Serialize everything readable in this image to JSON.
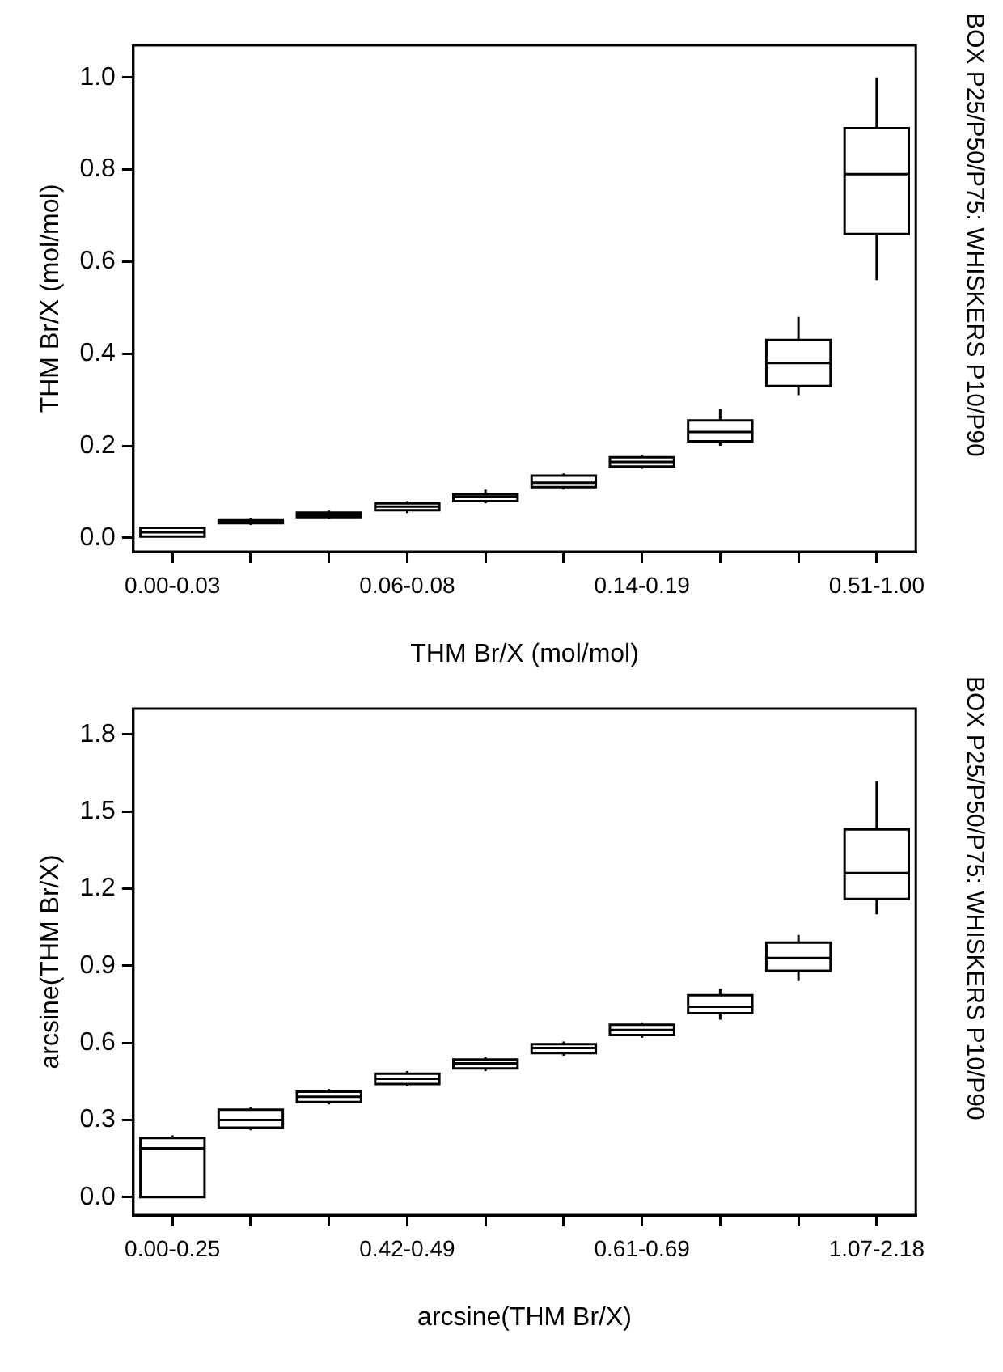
{
  "chart_data": [
    {
      "type": "box",
      "xlabel": "THM Br/X (mol/mol)",
      "ylabel": "THM Br/X (mol/mol)",
      "annotations": [
        "BOX P25/P50/P75: WHISKERS P10/P90"
      ],
      "categories": [
        "0.00-0.03",
        null,
        null,
        "0.06-0.08",
        null,
        null,
        "0.14-0.19",
        null,
        null,
        "0.51-1.00"
      ],
      "boxes": [
        {
          "low": 0.003,
          "q1": 0.003,
          "median": 0.012,
          "q3": 0.022,
          "high": 0.022
        },
        {
          "low": 0.028,
          "q1": 0.032,
          "median": 0.036,
          "q3": 0.04,
          "high": 0.044
        },
        {
          "low": 0.041,
          "q1": 0.045,
          "median": 0.05,
          "q3": 0.055,
          "high": 0.059
        },
        {
          "low": 0.054,
          "q1": 0.06,
          "median": 0.068,
          "q3": 0.075,
          "high": 0.08
        },
        {
          "low": 0.075,
          "q1": 0.08,
          "median": 0.09,
          "q3": 0.095,
          "high": 0.105
        },
        {
          "low": 0.105,
          "q1": 0.11,
          "median": 0.12,
          "q3": 0.135,
          "high": 0.14
        },
        {
          "low": 0.15,
          "q1": 0.155,
          "median": 0.165,
          "q3": 0.175,
          "high": 0.18
        },
        {
          "low": 0.2,
          "q1": 0.21,
          "median": 0.23,
          "q3": 0.255,
          "high": 0.28
        },
        {
          "low": 0.31,
          "q1": 0.33,
          "median": 0.38,
          "q3": 0.43,
          "high": 0.48
        },
        {
          "low": 0.56,
          "q1": 0.66,
          "median": 0.79,
          "q3": 0.89,
          "high": 1.0
        }
      ],
      "ylim": [
        -0.03,
        1.07
      ],
      "yticks": [
        {
          "value": 0,
          "label": "0.0"
        },
        {
          "value": 0.2,
          "label": "0.2"
        },
        {
          "value": 0.4,
          "label": "0.4"
        },
        {
          "value": 0.6,
          "label": "0.6"
        },
        {
          "value": 0.8,
          "label": "0.8"
        },
        {
          "value": 1,
          "label": "1.0"
        }
      ],
      "grid": false
    },
    {
      "type": "box",
      "xlabel": "arcsine(THM Br/X)",
      "ylabel": "arcsine(THM Br/X)",
      "annotations": [
        "BOX P25/P50/P75: WHISKERS P10/P90"
      ],
      "categories": [
        "0.00-0.25",
        null,
        null,
        "0.42-0.49",
        null,
        null,
        "0.61-0.69",
        null,
        null,
        "1.07-2.18"
      ],
      "boxes": [
        {
          "low": 0.0,
          "q1": 0.0,
          "median": 0.19,
          "q3": 0.23,
          "high": 0.24
        },
        {
          "low": 0.26,
          "q1": 0.27,
          "median": 0.3,
          "q3": 0.34,
          "high": 0.35
        },
        {
          "low": 0.36,
          "q1": 0.37,
          "median": 0.39,
          "q3": 0.41,
          "high": 0.42
        },
        {
          "low": 0.43,
          "q1": 0.44,
          "median": 0.46,
          "q3": 0.48,
          "high": 0.49
        },
        {
          "low": 0.49,
          "q1": 0.5,
          "median": 0.52,
          "q3": 0.535,
          "high": 0.545
        },
        {
          "low": 0.55,
          "q1": 0.56,
          "median": 0.58,
          "q3": 0.595,
          "high": 0.605
        },
        {
          "low": 0.62,
          "q1": 0.63,
          "median": 0.65,
          "q3": 0.67,
          "high": 0.68
        },
        {
          "low": 0.69,
          "q1": 0.715,
          "median": 0.74,
          "q3": 0.785,
          "high": 0.81
        },
        {
          "low": 0.84,
          "q1": 0.88,
          "median": 0.93,
          "q3": 0.99,
          "high": 1.02
        },
        {
          "low": 1.1,
          "q1": 1.16,
          "median": 1.26,
          "q3": 1.43,
          "high": 1.62
        }
      ],
      "ylim": [
        -0.07,
        1.9
      ],
      "yticks": [
        {
          "value": 0,
          "label": "0.0"
        },
        {
          "value": 0.3,
          "label": "0.3"
        },
        {
          "value": 0.6,
          "label": "0.6"
        },
        {
          "value": 0.9,
          "label": "0.9"
        },
        {
          "value": 1.2,
          "label": "1.2"
        },
        {
          "value": 1.5,
          "label": "1.5"
        },
        {
          "value": 1.8,
          "label": "1.8"
        }
      ],
      "grid": false
    }
  ]
}
